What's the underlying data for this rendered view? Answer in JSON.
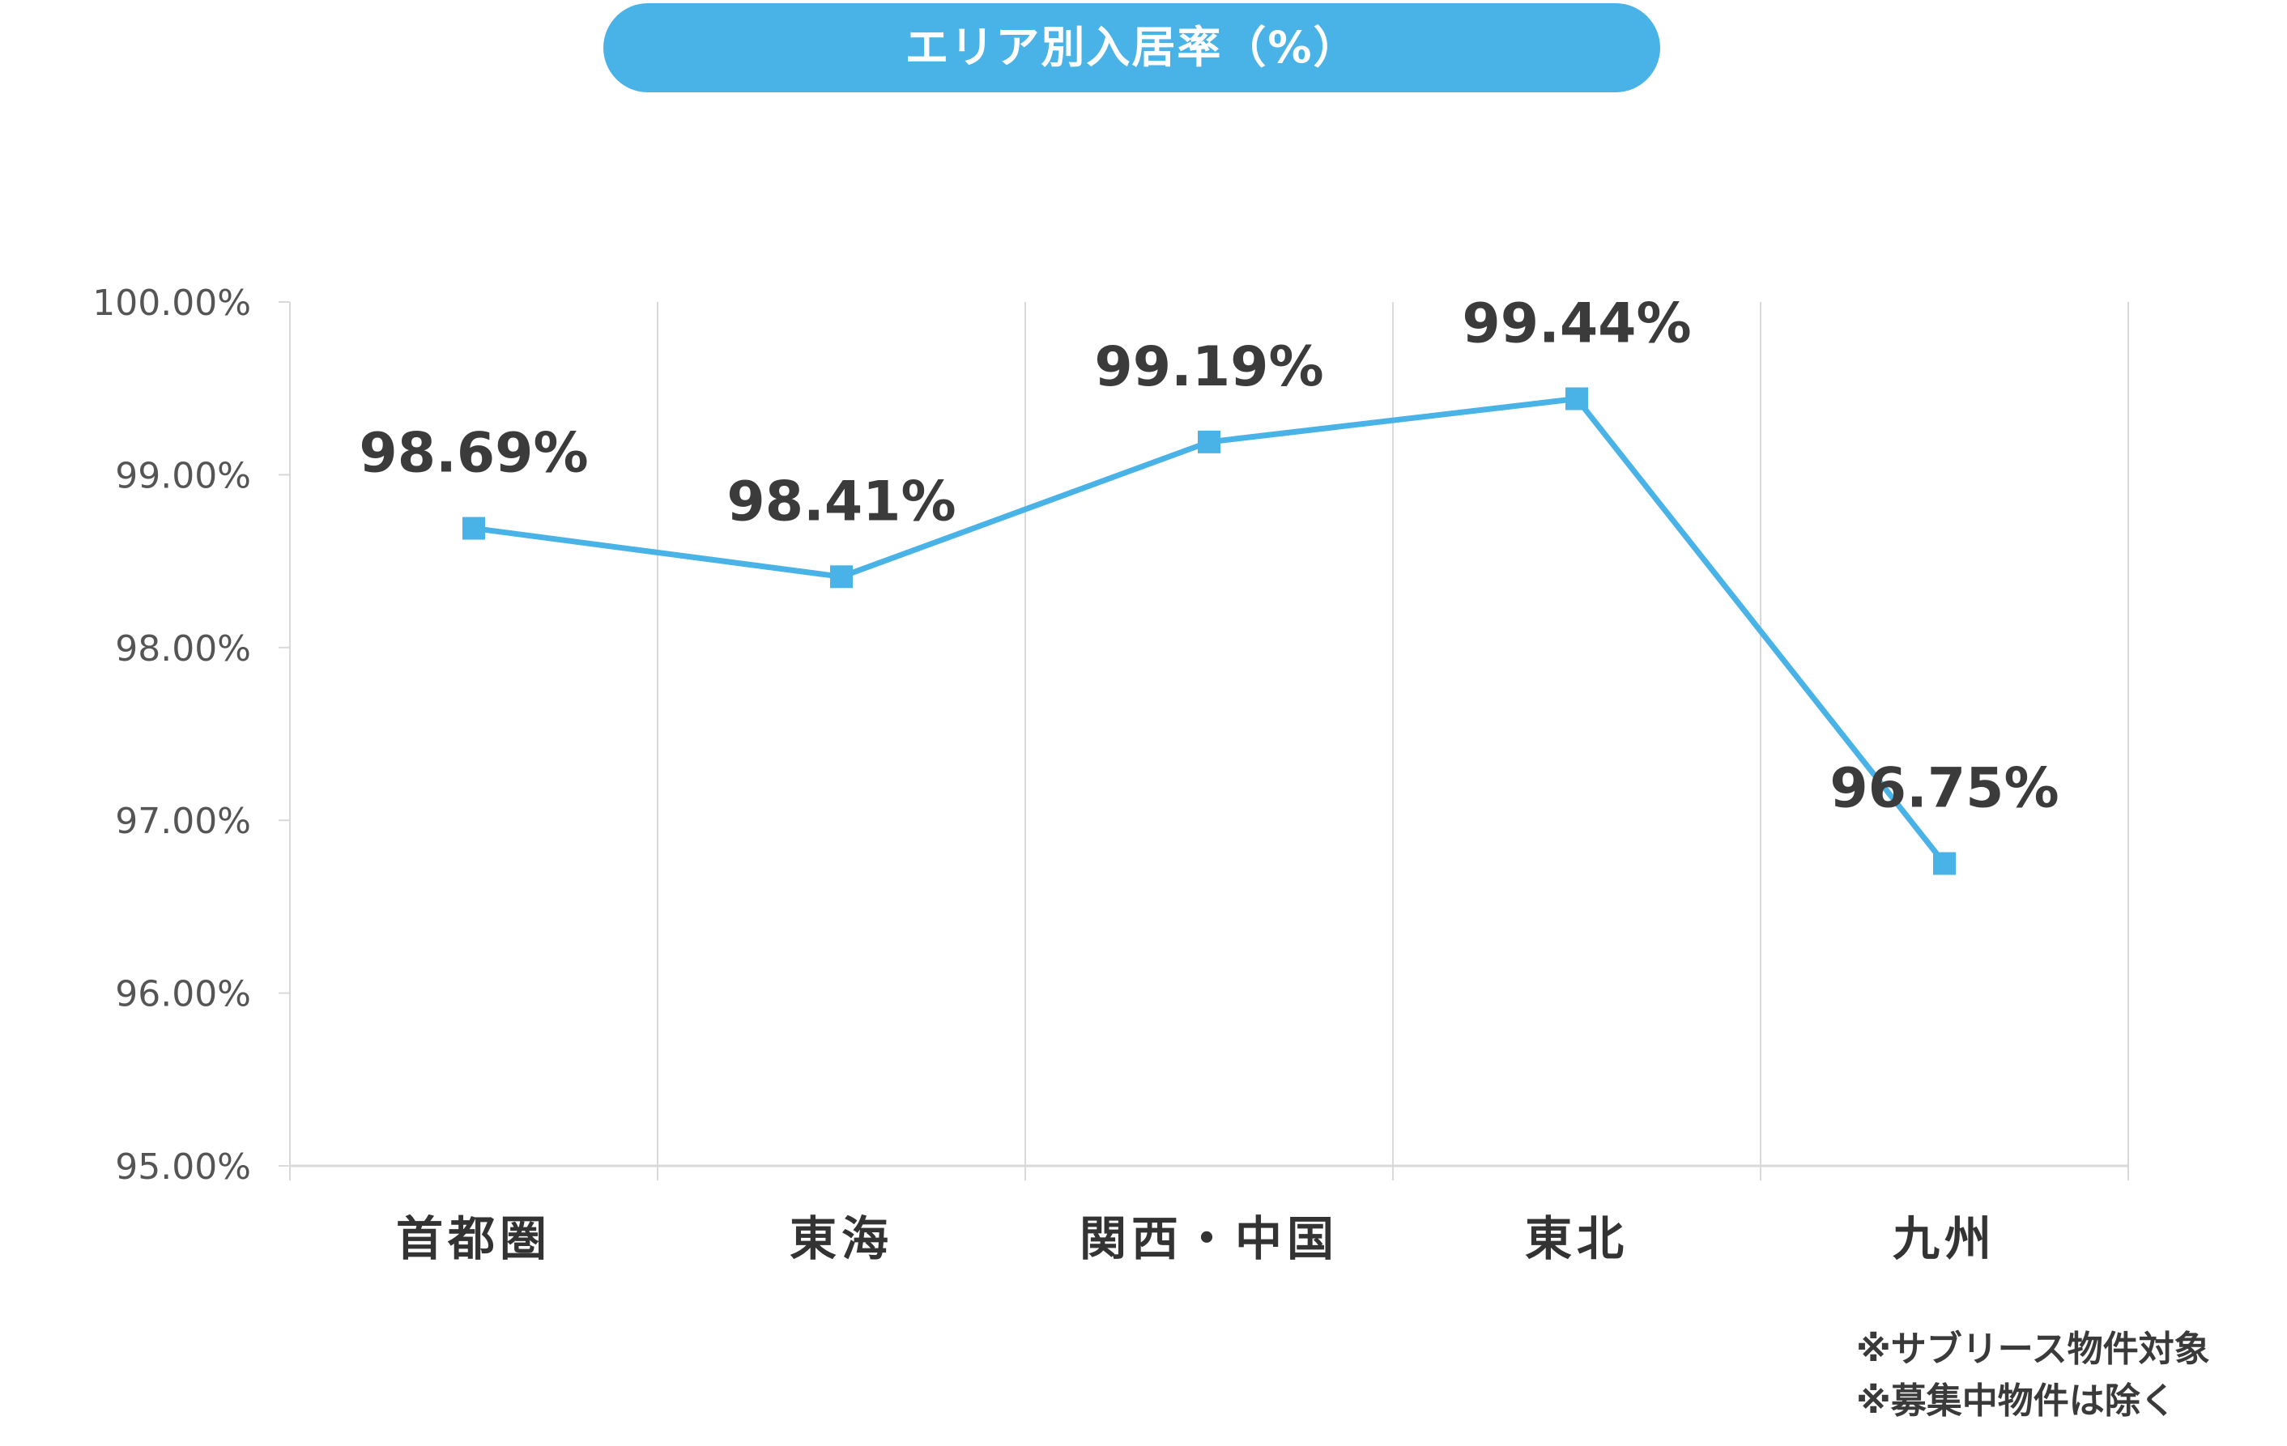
{
  "chart_data": {
    "type": "line",
    "title": "エリア別入居率（%）",
    "categories": [
      "首都圏",
      "東海",
      "関西・中国",
      "東北",
      "九州"
    ],
    "series": [
      {
        "values": [
          98.69,
          98.41,
          99.19,
          99.44,
          96.75
        ],
        "data_labels": [
          "98.69%",
          "98.41%",
          "99.19%",
          "99.44%",
          "96.75%"
        ]
      }
    ],
    "ylim": [
      95.0,
      100.0
    ],
    "yticks": [
      95,
      96,
      97,
      98,
      99,
      100
    ],
    "ytick_labels": [
      "95.00%",
      "96.00%",
      "97.00%",
      "98.00%",
      "99.00%",
      "100.00%"
    ],
    "grid": "vertical",
    "marker": "square",
    "line_color": "#49b2e6",
    "title_pill_color": "#49b2e6",
    "grid_color": "#d9d9d9",
    "footnotes": [
      "※サブリース物件対象",
      "※募集中物件は除く"
    ]
  }
}
